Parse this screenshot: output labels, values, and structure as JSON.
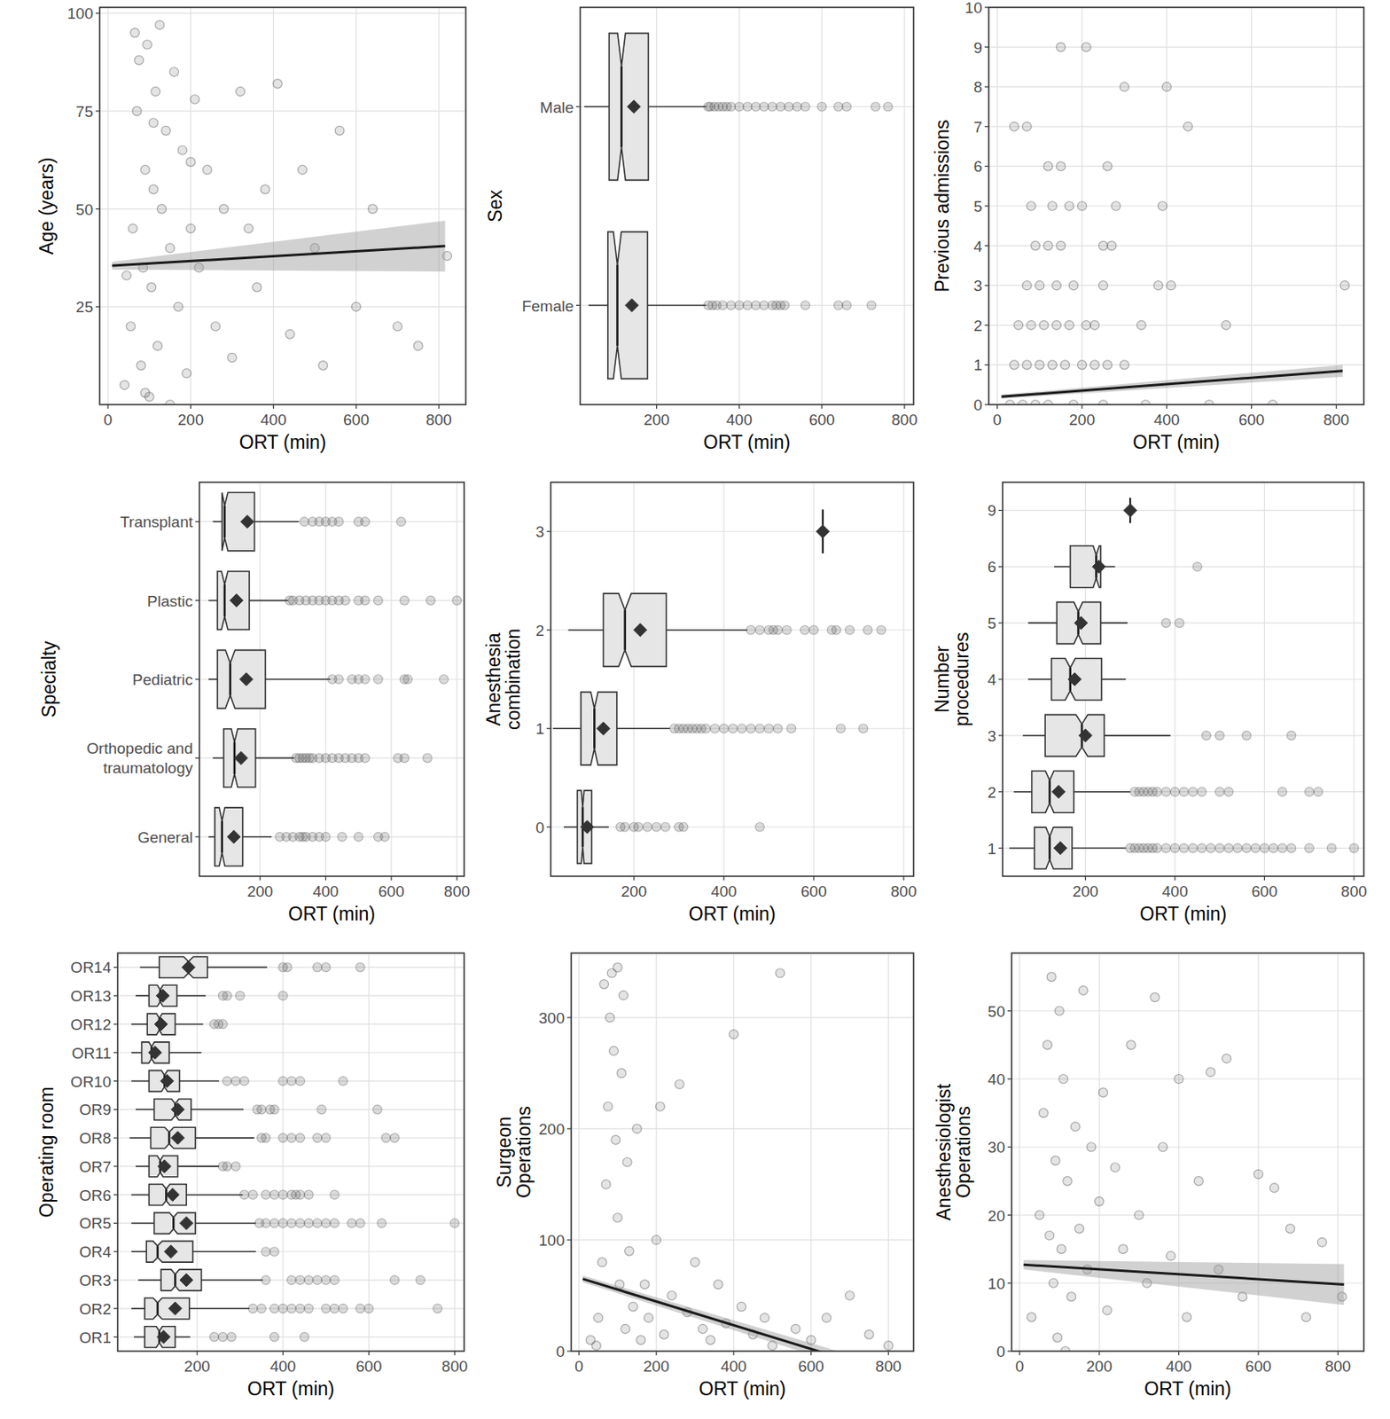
{
  "chart_data": [
    {
      "type": "scatter",
      "x_label": "ORT (min)",
      "y_label": "Age (years)",
      "color": "#4d4d4d",
      "grid": true,
      "xlim": [
        -20,
        865
      ],
      "xticks": [
        0,
        200,
        400,
        600,
        800
      ],
      "ylim": [
        0,
        101.5
      ],
      "yticks": [
        25,
        50,
        75,
        100
      ],
      "x": [
        40,
        55,
        60,
        70,
        75,
        80,
        85,
        90,
        95,
        100,
        105,
        110,
        115,
        120,
        130,
        140,
        150,
        160,
        170,
        180,
        190,
        200,
        210,
        220,
        240,
        260,
        280,
        300,
        320,
        340,
        360,
        380,
        410,
        440,
        470,
        500,
        520,
        560,
        600,
        640,
        700,
        750,
        820,
        65,
        125,
        90,
        150,
        200,
        45,
        110
      ],
      "values": [
        5,
        20,
        45,
        75,
        88,
        10,
        35,
        60,
        92,
        2,
        30,
        55,
        80,
        15,
        50,
        70,
        40,
        85,
        25,
        65,
        8,
        45,
        78,
        35,
        60,
        20,
        50,
        12,
        80,
        45,
        30,
        55,
        82,
        18,
        60,
        40,
        10,
        70,
        25,
        50,
        20,
        15,
        38,
        95,
        97,
        3,
        0,
        62,
        33,
        72
      ],
      "fit": {
        "x": [
          10,
          815
        ],
        "y": [
          35.5,
          40.5
        ],
        "lower": [
          34.5,
          34
        ],
        "upper": [
          36.5,
          47
        ]
      }
    },
    {
      "type": "boxplot",
      "orientation": "horizontal",
      "x_label": "ORT (min)",
      "y_label": "Sex",
      "color": "#e6e6e6",
      "grid": true,
      "xlim": [
        15,
        822
      ],
      "xticks": [
        200,
        400,
        600,
        800
      ],
      "categories": [
        "Female",
        "Male"
      ],
      "whisker_low": [
        35,
        25
      ],
      "q1": [
        82,
        85
      ],
      "median": [
        105,
        115
      ],
      "q3": [
        178,
        180
      ],
      "whisker_high": [
        320,
        320
      ],
      "mean": [
        140,
        145
      ],
      "outliers": [
        [
          325,
          335,
          345,
          360,
          380,
          400,
          420,
          440,
          460,
          480,
          490,
          500,
          510,
          560,
          640,
          660,
          720
        ],
        [
          325,
          330,
          340,
          350,
          360,
          370,
          380,
          400,
          420,
          440,
          460,
          480,
          500,
          520,
          540,
          560,
          600,
          640,
          660,
          730,
          760
        ]
      ]
    },
    {
      "type": "scatter",
      "x_label": "ORT (min)",
      "y_label": "Previous admissions",
      "color": "#4d4d4d",
      "grid": true,
      "xlim": [
        -20,
        865
      ],
      "xticks": [
        0,
        200,
        400,
        600,
        800
      ],
      "ylim": [
        0,
        10
      ],
      "yticks": [
        0,
        1,
        2,
        3,
        4,
        5,
        6,
        7,
        8,
        9,
        10
      ],
      "x": [
        30,
        60,
        90,
        120,
        180,
        250,
        350,
        500,
        650,
        40,
        70,
        100,
        130,
        160,
        200,
        230,
        260,
        300,
        50,
        80,
        110,
        140,
        170,
        210,
        230,
        340,
        540,
        70,
        100,
        140,
        180,
        250,
        380,
        410,
        820,
        90,
        120,
        150,
        250,
        270,
        80,
        130,
        170,
        200,
        280,
        390,
        120,
        150,
        260,
        40,
        70,
        450,
        300,
        400,
        150,
        210
      ],
      "values": [
        0,
        0,
        0,
        0,
        0,
        0,
        0,
        0,
        0,
        1,
        1,
        1,
        1,
        1,
        1,
        1,
        1,
        1,
        2,
        2,
        2,
        2,
        2,
        2,
        2,
        2,
        2,
        3,
        3,
        3,
        3,
        3,
        3,
        3,
        3,
        4,
        4,
        4,
        4,
        4,
        5,
        5,
        5,
        5,
        5,
        5,
        6,
        6,
        6,
        7,
        7,
        7,
        8,
        8,
        9,
        9
      ],
      "fit": {
        "x": [
          10,
          815
        ],
        "y": [
          0.2,
          0.85
        ],
        "lower": [
          0.15,
          0.7
        ],
        "upper": [
          0.25,
          1.0
        ]
      }
    },
    {
      "type": "boxplot",
      "orientation": "horizontal",
      "x_label": "ORT (min)",
      "y_label": "Specialty",
      "color": "#e6e6e6",
      "grid": true,
      "xlim": [
        15,
        822
      ],
      "xticks": [
        200,
        400,
        600,
        800
      ],
      "categories": [
        "General",
        "Orthopedic and\ntraumatology",
        "Pediatric",
        "Plastic",
        "Transplant"
      ],
      "whisker_low": [
        43,
        56,
        43,
        43,
        56
      ],
      "q1": [
        62,
        89,
        70,
        70,
        84
      ],
      "median": [
        84,
        122,
        109,
        92,
        92
      ],
      "q3": [
        147,
        186,
        216,
        167,
        183
      ],
      "whisker_high": [
        235,
        304,
        414,
        285,
        318
      ],
      "mean": [
        120,
        142,
        158,
        128,
        161
      ],
      "outliers": [
        [
          260,
          280,
          300,
          320,
          330,
          340,
          360,
          380,
          400,
          450,
          500,
          560,
          580
        ],
        [
          310,
          320,
          330,
          340,
          350,
          360,
          380,
          400,
          420,
          440,
          460,
          480,
          500,
          520,
          620,
          640,
          710
        ],
        [
          420,
          440,
          480,
          500,
          520,
          560,
          640,
          650,
          760
        ],
        [
          290,
          300,
          320,
          340,
          360,
          380,
          400,
          420,
          440,
          460,
          500,
          520,
          560,
          640,
          720,
          800
        ],
        [
          335,
          360,
          380,
          400,
          420,
          440,
          500,
          520,
          630
        ]
      ]
    },
    {
      "type": "boxplot",
      "orientation": "horizontal",
      "x_label": "ORT (min)",
      "y_label": "Anesthesia\ncombination",
      "color": "#e6e6e6",
      "grid": true,
      "xlim": [
        15,
        822
      ],
      "xticks": [
        200,
        400,
        600,
        800
      ],
      "categories": [
        "0",
        "1",
        "2",
        "3"
      ],
      "whisker_low": [
        44,
        20,
        54,
        620
      ],
      "q1": [
        74,
        82,
        132,
        620
      ],
      "median": [
        86,
        112,
        180,
        620
      ],
      "q3": [
        106,
        162,
        272,
        620
      ],
      "whisker_high": [
        144,
        280,
        452,
        620
      ],
      "mean": [
        96,
        132,
        214,
        620
      ],
      "outliers": [
        [
          170,
          180,
          200,
          210,
          230,
          250,
          270,
          300,
          310,
          480
        ],
        [
          290,
          300,
          310,
          320,
          330,
          340,
          350,
          360,
          380,
          400,
          420,
          440,
          460,
          480,
          500,
          520,
          550,
          660,
          710
        ],
        [
          460,
          480,
          500,
          510,
          520,
          540,
          580,
          600,
          640,
          650,
          680,
          720,
          750
        ],
        []
      ]
    },
    {
      "type": "boxplot",
      "orientation": "horizontal",
      "x_label": "ORT (min)",
      "y_label": "Number\nprocedures",
      "color": "#e6e6e6",
      "grid": true,
      "xlim": [
        15,
        822
      ],
      "xticks": [
        200,
        400,
        600,
        800
      ],
      "categories": [
        "1",
        "2",
        "3",
        "4",
        "5",
        "6",
        "9"
      ],
      "whisker_low": [
        30,
        40,
        60,
        72,
        72,
        130,
        300
      ],
      "q1": [
        86,
        80,
        110,
        124,
        136,
        166,
        300
      ],
      "median": [
        120,
        120,
        192,
        166,
        184,
        224,
        300
      ],
      "q3": [
        170,
        174,
        242,
        236,
        234,
        234,
        300
      ],
      "whisker_high": [
        290,
        300,
        390,
        290,
        294,
        266,
        300
      ],
      "mean": [
        144,
        140,
        200,
        176,
        190,
        230,
        300
      ],
      "outliers": [
        [
          300,
          310,
          320,
          330,
          340,
          350,
          360,
          380,
          400,
          420,
          440,
          460,
          480,
          500,
          520,
          540,
          560,
          580,
          600,
          620,
          640,
          660,
          700,
          750,
          800
        ],
        [
          310,
          320,
          330,
          340,
          350,
          360,
          380,
          400,
          420,
          440,
          460,
          500,
          520,
          640,
          700,
          720
        ],
        [
          470,
          500,
          560,
          660
        ],
        [],
        [
          380,
          410
        ],
        [
          450
        ],
        []
      ]
    },
    {
      "type": "boxplot",
      "orientation": "horizontal",
      "x_label": "ORT (min)",
      "y_label": "Operating room",
      "color": "#e6e6e6",
      "grid": true,
      "xlim": [
        15,
        822
      ],
      "xticks": [
        200,
        400,
        600,
        800
      ],
      "categories": [
        "OR1",
        "OR2",
        "OR3",
        "OR4",
        "OR5",
        "OR6",
        "OR7",
        "OR8",
        "OR9",
        "OR10",
        "OR11",
        "OR12",
        "OR13",
        "OR14"
      ],
      "whisker_low": [
        53,
        47,
        63,
        47,
        47,
        47,
        57,
        43,
        57,
        47,
        47,
        47,
        57,
        67
      ],
      "q1": [
        78,
        78,
        116,
        82,
        100,
        88,
        88,
        92,
        100,
        88,
        71,
        84,
        88,
        112
      ],
      "median": [
        112,
        108,
        149,
        108,
        145,
        128,
        114,
        135,
        149,
        124,
        94,
        112,
        114,
        180
      ],
      "q3": [
        149,
        182,
        210,
        190,
        196,
        175,
        155,
        196,
        186,
        159,
        135,
        149,
        153,
        224
      ],
      "whisker_high": [
        184,
        322,
        353,
        337,
        337,
        306,
        251,
        333,
        308,
        251,
        210,
        214,
        220,
        363
      ],
      "mean": [
        122,
        149,
        175,
        139,
        175,
        143,
        124,
        155,
        155,
        130,
        102,
        116,
        120,
        180
      ],
      "outliers": [
        [
          240,
          260,
          280,
          380,
          450
        ],
        [
          330,
          350,
          380,
          400,
          420,
          440,
          460,
          500,
          520,
          540,
          580,
          600,
          760
        ],
        [
          360,
          420,
          440,
          460,
          480,
          500,
          520,
          660,
          720
        ],
        [
          360,
          380
        ],
        [
          345,
          360,
          380,
          400,
          420,
          440,
          460,
          480,
          500,
          520,
          560,
          580,
          630,
          800
        ],
        [
          310,
          330,
          360,
          380,
          400,
          420,
          430,
          440,
          460,
          520
        ],
        [
          260,
          270,
          290
        ],
        [
          350,
          360,
          400,
          420,
          440,
          480,
          500,
          640,
          660
        ],
        [
          340,
          350,
          370,
          380,
          490,
          620
        ],
        [
          270,
          290,
          310,
          400,
          420,
          440,
          540
        ],
        [],
        [
          240,
          250,
          260
        ],
        [
          260,
          270,
          300,
          400
        ],
        [
          400,
          410,
          480,
          500,
          580
        ]
      ]
    },
    {
      "type": "scatter",
      "x_label": "ORT (min)",
      "y_label": "Surgeon\nOperations",
      "color": "#4d4d4d",
      "grid": true,
      "xlim": [
        -20,
        865
      ],
      "xticks": [
        0,
        200,
        400,
        600,
        800
      ],
      "ylim": [
        0,
        358
      ],
      "yticks": [
        0,
        100,
        200,
        300
      ],
      "x": [
        30,
        50,
        60,
        70,
        75,
        80,
        85,
        90,
        95,
        100,
        105,
        110,
        115,
        120,
        130,
        140,
        150,
        160,
        170,
        180,
        200,
        210,
        220,
        240,
        260,
        280,
        300,
        320,
        340,
        360,
        380,
        400,
        420,
        450,
        480,
        500,
        520,
        560,
        600,
        640,
        700,
        750,
        800,
        65,
        100,
        45,
        125
      ],
      "values": [
        10,
        30,
        80,
        150,
        220,
        300,
        340,
        270,
        190,
        120,
        60,
        250,
        320,
        20,
        90,
        40,
        200,
        10,
        60,
        30,
        100,
        220,
        15,
        50,
        240,
        35,
        80,
        20,
        10,
        60,
        25,
        285,
        40,
        15,
        30,
        5,
        340,
        20,
        10,
        30,
        50,
        15,
        5,
        330,
        345,
        5,
        170
      ],
      "fit": {
        "x": [
          10,
          815
        ],
        "y": [
          65,
          -21
        ],
        "lower": [
          62,
          -27
        ],
        "upper": [
          68,
          -15
        ]
      }
    },
    {
      "type": "scatter",
      "x_label": "ORT (min)",
      "y_label": "Anesthesiologist\nOperations",
      "color": "#4d4d4d",
      "grid": true,
      "xlim": [
        -20,
        865
      ],
      "xticks": [
        0,
        200,
        400,
        600,
        800
      ],
      "ylim": [
        0,
        58.5
      ],
      "yticks": [
        0,
        10,
        20,
        30,
        40,
        50
      ],
      "x": [
        30,
        50,
        60,
        70,
        80,
        85,
        90,
        100,
        105,
        110,
        120,
        130,
        140,
        150,
        160,
        170,
        180,
        200,
        210,
        220,
        240,
        260,
        280,
        300,
        320,
        340,
        360,
        380,
        400,
        420,
        450,
        480,
        500,
        520,
        560,
        600,
        640,
        680,
        720,
        760,
        810,
        95,
        115,
        75
      ],
      "values": [
        5,
        20,
        35,
        45,
        55,
        10,
        28,
        50,
        15,
        40,
        25,
        8,
        33,
        18,
        53,
        12,
        30,
        22,
        38,
        6,
        27,
        15,
        45,
        20,
        10,
        52,
        30,
        14,
        40,
        5,
        25,
        41,
        12,
        43,
        8,
        26,
        24,
        18,
        5,
        16,
        8,
        2,
        0,
        17
      ],
      "fit": {
        "x": [
          10,
          815
        ],
        "y": [
          12.7,
          9.8
        ],
        "lower": [
          12,
          6.8
        ],
        "upper": [
          13.4,
          12.8
        ]
      }
    }
  ]
}
